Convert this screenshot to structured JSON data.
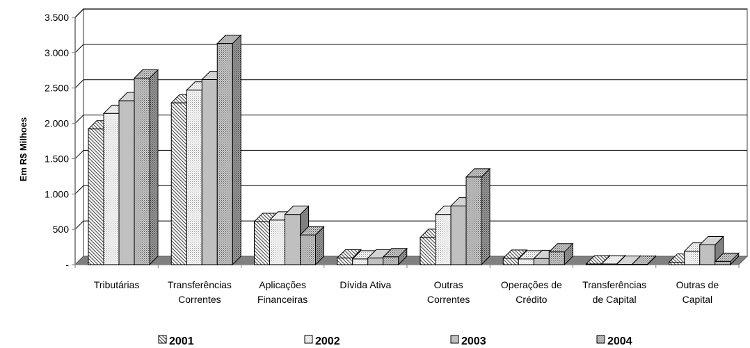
{
  "chart_data": {
    "type": "bar",
    "ylabel": "Em R$ Milhoes",
    "ylim": [
      0,
      3500
    ],
    "ytick_values": [
      0,
      500,
      1000,
      1500,
      2000,
      2500,
      3000,
      3500
    ],
    "ytick_labels": [
      "-",
      "500",
      "1.000",
      "1.500",
      "2.000",
      "2.500",
      "3.000",
      "3.500"
    ],
    "grid": true,
    "legend_position": "bottom",
    "categories": [
      [
        "Tributárias"
      ],
      [
        "Transferências",
        "Correntes"
      ],
      [
        "Aplicações",
        "Financeiras"
      ],
      [
        "Dívida Ativa"
      ],
      [
        "Outras",
        "Correntes"
      ],
      [
        "Operações de",
        "Crédito"
      ],
      [
        "Transferências",
        "de Capital"
      ],
      [
        "Outras de",
        "Capital"
      ]
    ],
    "series": [
      {
        "name": "2001",
        "values": [
          1920,
          2290,
          610,
          95,
          385,
          90,
          10,
          35
        ],
        "pattern": "diag",
        "color": "#b8b8b8"
      },
      {
        "name": "2002",
        "values": [
          2140,
          2470,
          630,
          80,
          710,
          80,
          10,
          190
        ],
        "pattern": "dots-light",
        "color": "#f0f0f0"
      },
      {
        "name": "2003",
        "values": [
          2320,
          2620,
          710,
          95,
          830,
          85,
          5,
          280
        ],
        "pattern": "solid",
        "color": "#c0c0c0"
      },
      {
        "name": "2004",
        "values": [
          2640,
          3130,
          420,
          110,
          1240,
          180,
          5,
          45
        ],
        "pattern": "dots-dark",
        "color": "#a8a8a8"
      }
    ]
  }
}
